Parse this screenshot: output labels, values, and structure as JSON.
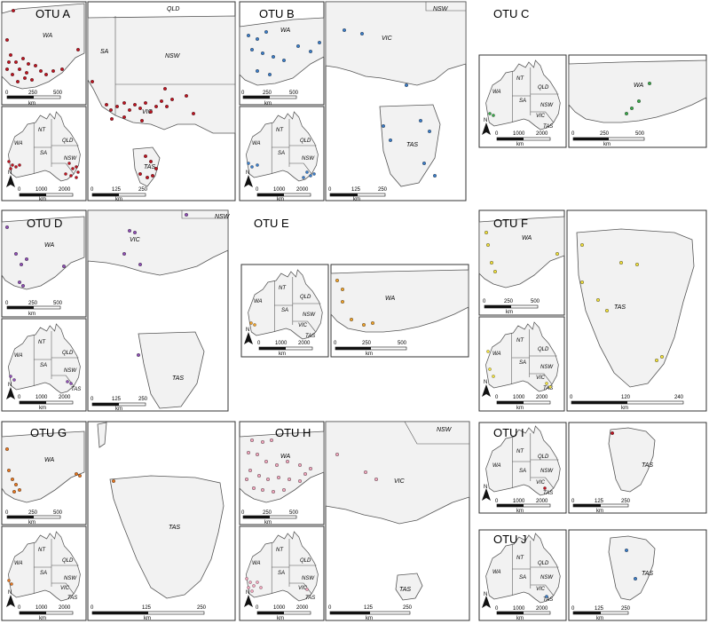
{
  "colors": {
    "land": "#f2f2f2",
    "border": "#555555",
    "panel_border": "#333333",
    "otu_a": "#c0121f",
    "otu_b": "#3a7dc9",
    "otu_c": "#3aa84a",
    "otu_d": "#8f4fb5",
    "otu_e": "#f0a22a",
    "otu_f": "#f2e13a",
    "otu_g": "#e8761e",
    "otu_h": "#f2a6bd",
    "otu_i": "#c0121f",
    "otu_j": "#3a7dc9"
  },
  "state_labels": {
    "wa": "WA",
    "nt": "NT",
    "qld": "QLD",
    "sa": "SA",
    "nsw": "NSW",
    "vic": "VIC",
    "tas": "TAS"
  },
  "north_label": "N",
  "km_label": "km",
  "scales": {
    "wa": [
      "0",
      "250",
      "500"
    ],
    "aus": [
      "0",
      "1000",
      "2000"
    ],
    "se": [
      "0",
      "250",
      "500"
    ],
    "se2": [
      "0",
      "125",
      "250"
    ],
    "tas120": [
      "0",
      "120",
      "240"
    ]
  },
  "otus": [
    {
      "id": "a",
      "title": "OTU A"
    },
    {
      "id": "b",
      "title": "OTU B"
    },
    {
      "id": "c",
      "title": "OTU C"
    },
    {
      "id": "d",
      "title": "OTU D"
    },
    {
      "id": "e",
      "title": "OTU E"
    },
    {
      "id": "f",
      "title": "OTU F"
    },
    {
      "id": "g",
      "title": "OTU G"
    },
    {
      "id": "h",
      "title": "OTU H"
    },
    {
      "id": "i",
      "title": "OTU I"
    },
    {
      "id": "j",
      "title": "OTU J"
    }
  ]
}
